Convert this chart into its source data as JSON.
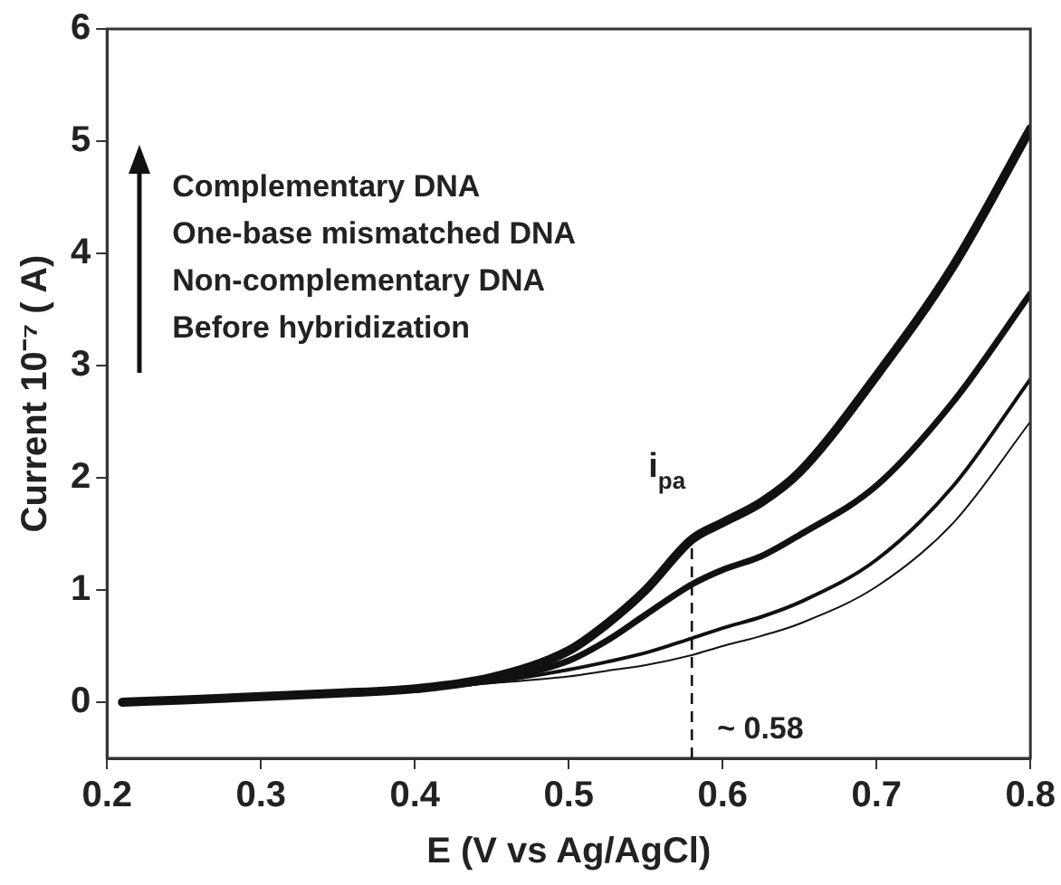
{
  "chart_data": {
    "type": "line",
    "xlabel": "E (V vs Ag/AgCl)",
    "ylabel": "Current 10⁻⁷ ( A)",
    "x": [
      0.21,
      0.25,
      0.3,
      0.35,
      0.4,
      0.45,
      0.5,
      0.525,
      0.55,
      0.58,
      0.6,
      0.625,
      0.65,
      0.7,
      0.75,
      0.8
    ],
    "series": [
      {
        "color": "#111111",
        "values": [
          0,
          0.02,
          0.05,
          0.08,
          0.12,
          0.22,
          0.46,
          0.7,
          1.0,
          1.45,
          1.6,
          1.78,
          2.05,
          2.91,
          3.89,
          5.11
        ]
      },
      {
        "color": "#111111",
        "values": [
          0,
          0.02,
          0.05,
          0.08,
          0.12,
          0.2,
          0.37,
          0.55,
          0.78,
          1.05,
          1.18,
          1.3,
          1.49,
          1.93,
          2.68,
          3.64
        ]
      },
      {
        "color": "#111111",
        "values": [
          0,
          0.02,
          0.05,
          0.08,
          0.12,
          0.18,
          0.29,
          0.36,
          0.44,
          0.57,
          0.66,
          0.76,
          0.89,
          1.27,
          1.93,
          2.88
        ]
      },
      {
        "color": "#111111",
        "values": [
          0,
          0.02,
          0.05,
          0.08,
          0.12,
          0.17,
          0.23,
          0.28,
          0.33,
          0.42,
          0.5,
          0.59,
          0.7,
          1.03,
          1.6,
          2.5
        ]
      }
    ],
    "xlim": [
      0.2,
      0.8
    ],
    "xticks": [
      0.2,
      0.3,
      0.4,
      0.5,
      0.6,
      0.7,
      0.8
    ],
    "ylim": [
      -0.5,
      6
    ],
    "yticks": [
      0,
      1,
      2,
      3,
      4,
      5,
      6
    ],
    "grid": false,
    "legend": false,
    "marker": "none",
    "line_style": "solid",
    "ref_lines": [
      {
        "axis": "x",
        "value": 0.58,
        "label": "~ 0.58",
        "line_style": "dashed",
        "color": "#111111"
      }
    ],
    "annotations": [
      "Complementary DNA",
      "One-base mismatched DNA",
      "Non-complementary DNA",
      "Before hybridization",
      {
        "text": "i$_{pa}$",
        "x": 0.58,
        "y": 1.45
      }
    ]
  }
}
